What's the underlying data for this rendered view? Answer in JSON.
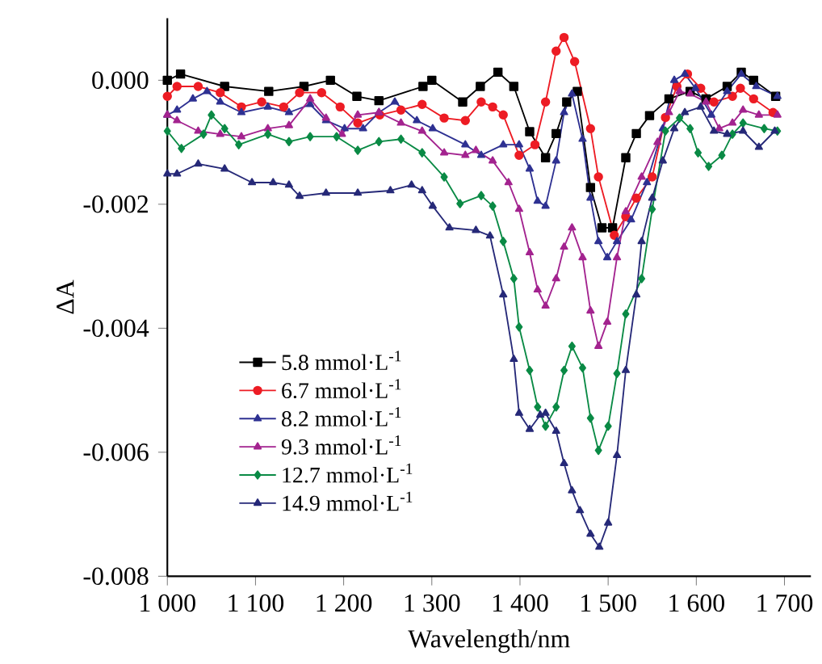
{
  "chart_data": {
    "type": "line",
    "xlabel": "Wavelength/nm",
    "ylabel": "ΔA",
    "xlim": [
      1000,
      1730
    ],
    "ylim": [
      -0.008,
      0.001
    ],
    "xticks": [
      {
        "value": 1000,
        "label": "1 000"
      },
      {
        "value": 1100,
        "label": "1 100"
      },
      {
        "value": 1200,
        "label": "1 200"
      },
      {
        "value": 1300,
        "label": "1 300"
      },
      {
        "value": 1400,
        "label": "1 400"
      },
      {
        "value": 1500,
        "label": "1 500"
      },
      {
        "value": 1600,
        "label": "1 600"
      },
      {
        "value": 1700,
        "label": "1 700"
      }
    ],
    "yticks": [
      {
        "value": 0,
        "label": "0.000"
      },
      {
        "value": -0.002,
        "label": "-0.002"
      },
      {
        "value": -0.004,
        "label": "-0.004"
      },
      {
        "value": -0.006,
        "label": "-0.006"
      },
      {
        "value": -0.008,
        "label": "-0.008"
      }
    ],
    "legend": "left",
    "grid": false,
    "series": [
      {
        "name": "5.8 mmol·L$^{-1}$",
        "color": "#000000",
        "marker": "square",
        "x": [
          1000,
          1015,
          1065,
          1115,
          1155,
          1185,
          1215,
          1240,
          1290,
          1300,
          1335,
          1355,
          1375,
          1393,
          1411,
          1429,
          1441,
          1453,
          1465,
          1480,
          1493,
          1505,
          1520,
          1532,
          1547,
          1569,
          1593,
          1611,
          1635,
          1651,
          1665,
          1690
        ],
        "values": [
          0.0,
          0.0001,
          -0.0001,
          -0.00018,
          -0.0001,
          0.0,
          -0.00026,
          -0.00033,
          -0.0001,
          0.0,
          -0.00035,
          -0.0001,
          0.00013,
          -0.0001,
          -0.00083,
          -0.00125,
          -0.00086,
          -0.00035,
          -0.00018,
          -0.00173,
          -0.00238,
          -0.00238,
          -0.00125,
          -0.00086,
          -0.00057,
          -0.0003,
          -0.00018,
          -0.0003,
          -0.0001,
          0.00013,
          0.0,
          -0.00026
        ]
      },
      {
        "name": "6.7 mmol·L$^{-1}$",
        "color": "#ed1c24",
        "marker": "circle",
        "x": [
          1000,
          1011,
          1035,
          1060,
          1084,
          1107,
          1132,
          1150,
          1175,
          1196,
          1216,
          1241,
          1265,
          1289,
          1314,
          1338,
          1356,
          1369,
          1381,
          1399,
          1417,
          1429,
          1441,
          1450,
          1462,
          1480,
          1489,
          1507,
          1520,
          1532,
          1550,
          1565,
          1578,
          1590,
          1605,
          1620,
          1641,
          1650,
          1665,
          1687
        ],
        "values": [
          -0.00026,
          -0.0001,
          -0.0001,
          -0.0002,
          -0.00043,
          -0.00035,
          -0.00043,
          -0.0002,
          -0.0002,
          -0.00043,
          -0.00069,
          -0.00056,
          -0.00048,
          -0.00039,
          -0.00061,
          -0.00065,
          -0.00035,
          -0.00043,
          -0.00056,
          -0.00121,
          -0.00104,
          -0.00035,
          0.00047,
          0.00069,
          0.0003,
          -0.00078,
          -0.00156,
          -0.0025,
          -0.0022,
          -0.0019,
          -0.00156,
          -0.0006,
          -0.0001,
          0.0001,
          -0.00013,
          -0.00035,
          -0.00026,
          -0.00013,
          -0.0003,
          -0.00052
        ]
      },
      {
        "name": "8.2 mmol·L$^{-1}$",
        "color": "#2e3192",
        "marker": "triangle",
        "x": [
          1000,
          1011,
          1029,
          1045,
          1060,
          1084,
          1114,
          1138,
          1162,
          1180,
          1201,
          1222,
          1240,
          1258,
          1283,
          1301,
          1338,
          1356,
          1381,
          1399,
          1411,
          1420,
          1429,
          1441,
          1450,
          1459,
          1471,
          1480,
          1489,
          1499,
          1510,
          1526,
          1544,
          1562,
          1575,
          1587,
          1599,
          1617,
          1635,
          1651,
          1668,
          1692
        ],
        "values": [
          -0.00056,
          -0.00048,
          -0.0003,
          -0.00018,
          -0.00035,
          -0.00052,
          -0.00043,
          -0.00052,
          -0.00039,
          -0.00065,
          -0.00078,
          -0.00078,
          -0.00052,
          -0.00035,
          -0.00065,
          -0.00078,
          -0.00104,
          -0.00121,
          -0.00104,
          -0.00104,
          -0.00143,
          -0.00195,
          -0.00203,
          -0.0013,
          -0.00052,
          -0.00022,
          -0.00095,
          -0.0019,
          -0.0026,
          -0.00286,
          -0.0026,
          -0.00225,
          -0.00165,
          -0.00078,
          0.0,
          0.0001,
          -0.00013,
          -0.00056,
          -0.00018,
          0.0001,
          -0.0001,
          -0.00026
        ]
      },
      {
        "name": "9.3 mmol·L$^{-1}$",
        "color": "#a3238f",
        "marker": "triangle",
        "x": [
          1000,
          1011,
          1035,
          1060,
          1084,
          1114,
          1138,
          1162,
          1180,
          1198,
          1216,
          1240,
          1265,
          1289,
          1314,
          1338,
          1350,
          1369,
          1387,
          1399,
          1411,
          1420,
          1429,
          1441,
          1450,
          1459,
          1471,
          1480,
          1489,
          1499,
          1510,
          1520,
          1538,
          1556,
          1569,
          1581,
          1593,
          1611,
          1626,
          1641,
          1653,
          1671,
          1692
        ],
        "values": [
          -0.00056,
          -0.00065,
          -0.00082,
          -0.00087,
          -0.00091,
          -0.00078,
          -0.00073,
          -0.0003,
          -0.00061,
          -0.00087,
          -0.00056,
          -0.00052,
          -0.00069,
          -0.00082,
          -0.00117,
          -0.00121,
          -0.00113,
          -0.0013,
          -0.00165,
          -0.00208,
          -0.00278,
          -0.00338,
          -0.00364,
          -0.0032,
          -0.00269,
          -0.00238,
          -0.00286,
          -0.00372,
          -0.00429,
          -0.0039,
          -0.00286,
          -0.00212,
          -0.00156,
          -0.001,
          -0.00052,
          -0.00018,
          -0.00022,
          -0.00035,
          -0.00078,
          -0.00069,
          -0.00048,
          -0.00056,
          -0.00056
        ]
      },
      {
        "name": "12.7 mmol·L$^{-1}$",
        "color": "#0a8a45",
        "marker": "diamond",
        "x": [
          1000,
          1016,
          1041,
          1050,
          1065,
          1081,
          1114,
          1138,
          1162,
          1192,
          1216,
          1240,
          1265,
          1289,
          1314,
          1332,
          1356,
          1369,
          1381,
          1393,
          1399,
          1411,
          1420,
          1429,
          1441,
          1450,
          1459,
          1471,
          1480,
          1489,
          1500,
          1510,
          1520,
          1538,
          1550,
          1565,
          1581,
          1593,
          1602,
          1614,
          1629,
          1641,
          1653,
          1677,
          1692
        ],
        "values": [
          -0.00082,
          -0.0011,
          -0.00087,
          -0.00056,
          -0.00078,
          -0.00104,
          -0.00087,
          -0.00099,
          -0.00091,
          -0.00091,
          -0.00113,
          -0.00099,
          -0.00095,
          -0.00117,
          -0.00156,
          -0.00199,
          -0.00186,
          -0.00203,
          -0.0026,
          -0.0032,
          -0.00398,
          -0.00468,
          -0.00527,
          -0.00558,
          -0.00527,
          -0.00468,
          -0.00429,
          -0.00464,
          -0.00545,
          -0.00597,
          -0.00558,
          -0.00473,
          -0.00377,
          -0.0032,
          -0.00208,
          -0.00082,
          -0.00061,
          -0.00078,
          -0.00117,
          -0.00139,
          -0.00121,
          -0.00087,
          -0.00069,
          -0.00078,
          -0.00082
        ]
      },
      {
        "name": "14.9 mmol·L$^{-1}$",
        "color": "#262978",
        "marker": "triangle",
        "x": [
          1000,
          1011,
          1035,
          1065,
          1096,
          1120,
          1138,
          1150,
          1180,
          1216,
          1253,
          1277,
          1289,
          1301,
          1320,
          1350,
          1366,
          1381,
          1393,
          1399,
          1411,
          1423,
          1429,
          1441,
          1450,
          1459,
          1468,
          1480,
          1490,
          1500,
          1510,
          1520,
          1532,
          1538,
          1550,
          1562,
          1575,
          1587,
          1605,
          1620,
          1635,
          1653,
          1671,
          1689
        ],
        "values": [
          -0.00151,
          -0.00151,
          -0.00135,
          -0.00143,
          -0.00165,
          -0.00165,
          -0.00169,
          -0.00187,
          -0.00182,
          -0.00182,
          -0.00178,
          -0.00169,
          -0.00178,
          -0.00203,
          -0.00238,
          -0.00242,
          -0.00251,
          -0.00346,
          -0.0045,
          -0.00537,
          -0.00563,
          -0.0054,
          -0.00537,
          -0.00566,
          -0.00618,
          -0.00662,
          -0.00694,
          -0.00732,
          -0.00753,
          -0.00714,
          -0.00605,
          -0.00468,
          -0.00346,
          -0.0026,
          -0.0019,
          -0.0013,
          -0.00078,
          -0.00052,
          -0.00043,
          -0.00082,
          -0.00087,
          -0.00082,
          -0.00108,
          -0.00082
        ]
      }
    ]
  }
}
